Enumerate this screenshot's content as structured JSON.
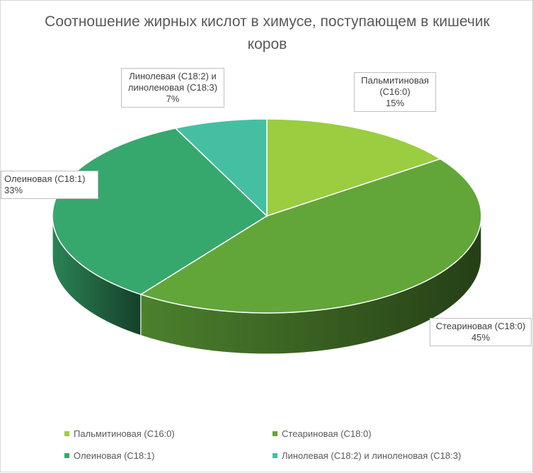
{
  "chart_data": {
    "type": "pie",
    "title": "Соотношение жирных кислот в химусе, поступающем в кишечик коров",
    "style": "3d-exploded-slice",
    "slices": [
      {
        "label": "Пальмитиновая (C16:0)",
        "value": 15,
        "value_label": "15%",
        "color": "#9ACD3F"
      },
      {
        "label": "Стеариновая (C18:0)",
        "value": 45,
        "value_label": "45%",
        "color": "#62A63A"
      },
      {
        "label": "Олеиновая (C18:1)",
        "value": 33,
        "value_label": "33%",
        "color": "#36A86D"
      },
      {
        "label": "Линолевая (C18:2) и линоленовая (C18:3)",
        "value": 7,
        "value_label": "7%",
        "color": "#44BFA2"
      }
    ],
    "legend_position": "bottom"
  },
  "callouts": {
    "palmitic": {
      "line1": "Пальмитиновая",
      "line2": "(C16:0)",
      "pct": "15%"
    },
    "stearic": {
      "line1": "Стеариновая (C18:0)",
      "pct": "45%"
    },
    "oleic": {
      "line1": "Олеиновая (C18:1)",
      "pct": "33%"
    },
    "linoleic": {
      "line1": "Линолевая (C18:2) и",
      "line2": "линоленовая (C18:3)",
      "pct": "7%"
    }
  }
}
